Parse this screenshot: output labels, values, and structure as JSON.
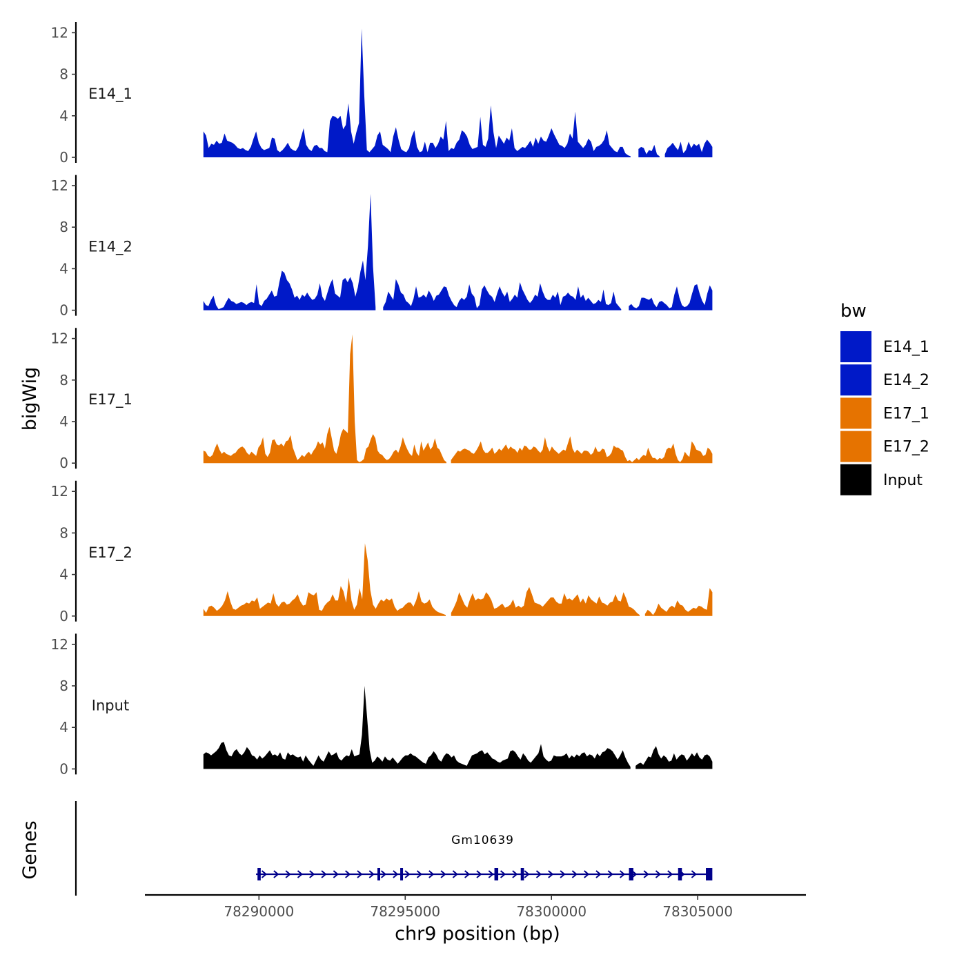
{
  "chart_data": {
    "type": "area",
    "title": "",
    "ylabel": "bigWig",
    "xlabel": "chr9 position (bp)",
    "genes_label": "Genes",
    "ylim": [
      0,
      12.5
    ],
    "yticks": [
      0,
      4,
      8,
      12
    ],
    "yticks_text": [
      "0",
      "4",
      "8",
      "12"
    ],
    "xlim": [
      78286100,
      78308700
    ],
    "xticks": [
      78290000,
      78295000,
      78300000,
      78305000
    ],
    "xticks_text": [
      "78290000",
      "78295000",
      "78300000",
      "78305000"
    ],
    "x_start": 78288100,
    "x_end": 78305500,
    "legend": {
      "title": "bw",
      "position": "right",
      "entries": [
        {
          "label": "E14_1",
          "color": "#0019c8"
        },
        {
          "label": "E14_2",
          "color": "#0019c8"
        },
        {
          "label": "E17_1",
          "color": "#e67300"
        },
        {
          "label": "E17_2",
          "color": "#e67300"
        },
        {
          "label": "Input",
          "color": "#000000"
        }
      ]
    },
    "series": [
      {
        "name": "E14_1",
        "color": "#0019c8",
        "values": [
          2.5,
          2.1,
          0.9,
          1.3,
          1.2,
          1.6,
          1.3,
          1.4,
          2.3,
          1.6,
          1.5,
          1.4,
          1.2,
          0.9,
          0.8,
          0.9,
          0.7,
          0.6,
          1.0,
          1.8,
          2.5,
          1.4,
          0.9,
          0.7,
          0.8,
          0.9,
          1.9,
          1.8,
          0.7,
          0.5,
          0.7,
          1.0,
          1.4,
          0.9,
          0.7,
          0.6,
          1.0,
          1.9,
          2.8,
          1.2,
          0.8,
          0.6,
          1.1,
          1.2,
          0.9,
          0.9,
          0.6,
          0.5,
          3.5,
          4.0,
          3.9,
          3.7,
          4.0,
          2.7,
          3.1,
          5.2,
          2.5,
          1.3,
          2.4,
          3.3,
          12.4,
          6.0,
          0.7,
          0.5,
          0.8,
          1.1,
          2.1,
          2.5,
          1.2,
          1.0,
          0.8,
          0.5,
          2.0,
          2.9,
          1.7,
          0.8,
          0.6,
          0.5,
          0.9,
          2.0,
          2.6,
          1.0,
          0.5,
          0.6,
          1.5,
          0.5,
          1.4,
          1.4,
          0.9,
          1.3,
          2.0,
          1.7,
          3.5,
          0.6,
          0.9,
          0.8,
          1.4,
          1.7,
          2.6,
          2.4,
          2.0,
          1.2,
          0.8,
          0.9,
          1.0,
          3.9,
          1.2,
          1.0,
          1.8,
          5.0,
          2.4,
          0.9,
          2.1,
          1.7,
          1.3,
          1.9,
          1.6,
          2.8,
          0.9,
          0.6,
          0.8,
          1.0,
          0.9,
          1.2,
          1.6,
          1.0,
          1.9,
          1.3,
          2.0,
          1.6,
          1.5,
          2.1,
          2.8,
          2.2,
          1.7,
          1.2,
          1.1,
          0.9,
          1.3,
          2.3,
          1.8,
          4.4,
          1.5,
          1.2,
          0.9,
          1.2,
          1.8,
          1.5,
          0.6,
          1.0,
          1.1,
          1.3,
          1.7,
          2.6,
          1.2,
          0.9,
          0.6,
          0.5,
          1.0,
          1.0,
          0.4,
          0.2,
          0.1,
          null,
          null,
          0.8,
          1.0,
          0.9,
          0.3,
          0.7,
          0.6,
          1.2,
          0.3,
          0.1,
          null,
          0.3,
          0.9,
          1.1,
          1.4,
          1.0,
          0.7,
          1.5,
          0.4,
          0.7,
          1.5,
          0.9,
          1.3,
          1.1,
          1.3,
          0.5,
          1.3,
          1.7,
          1.4,
          1.0
        ]
      },
      {
        "name": "E14_2",
        "color": "#0019c8",
        "values": [
          0.9,
          0.5,
          0.4,
          1.0,
          1.4,
          0.5,
          0.1,
          0.2,
          0.3,
          0.8,
          1.2,
          0.9,
          0.8,
          0.6,
          0.7,
          0.8,
          0.7,
          0.5,
          0.7,
          0.8,
          0.7,
          2.5,
          0.6,
          0.4,
          0.9,
          1.1,
          1.5,
          1.9,
          1.3,
          1.4,
          2.7,
          3.8,
          3.6,
          2.9,
          2.6,
          2.0,
          1.2,
          1.4,
          1.0,
          1.5,
          1.3,
          1.7,
          1.3,
          1.0,
          1.1,
          1.5,
          2.6,
          1.3,
          0.9,
          1.7,
          2.5,
          3.0,
          1.6,
          1.4,
          1.2,
          2.9,
          3.1,
          2.7,
          3.2,
          2.6,
          1.3,
          2.2,
          3.7,
          4.8,
          2.9,
          6.2,
          11.2,
          4.2,
          0.3,
          null,
          null,
          0.3,
          0.8,
          1.8,
          1.4,
          1.0,
          3.0,
          2.5,
          1.7,
          1.5,
          0.9,
          0.7,
          0.4,
          1.1,
          2.3,
          1.2,
          1.3,
          1.5,
          1.2,
          1.9,
          1.5,
          0.9,
          1.4,
          1.5,
          1.9,
          2.3,
          2.2,
          1.4,
          0.9,
          0.5,
          0.3,
          0.9,
          1.2,
          1.0,
          1.3,
          2.5,
          1.6,
          1.3,
          0.2,
          0.5,
          2.0,
          2.4,
          1.9,
          1.5,
          1.3,
          0.8,
          1.6,
          2.3,
          1.7,
          1.3,
          1.8,
          0.8,
          1.1,
          1.5,
          1.2,
          2.7,
          2.0,
          1.5,
          1.0,
          0.7,
          1.0,
          1.5,
          1.3,
          2.6,
          1.8,
          1.2,
          1.0,
          1.0,
          1.5,
          1.2,
          1.8,
          0.5,
          1.3,
          1.4,
          1.7,
          1.4,
          1.3,
          1.0,
          2.3,
          1.2,
          1.5,
          0.9,
          1.2,
          0.9,
          0.6,
          0.7,
          1.0,
          0.8,
          2.0,
          0.6,
          0.5,
          0.7,
          1.8,
          0.7,
          0.4,
          0.1,
          null,
          null,
          0.4,
          0.6,
          0.3,
          0.2,
          0.4,
          1.2,
          1.2,
          1.1,
          1.0,
          1.2,
          0.6,
          0.3,
          0.8,
          0.9,
          0.7,
          0.5,
          0.2,
          0.3,
          1.5,
          2.3,
          1.2,
          0.5,
          0.3,
          0.4,
          0.7,
          1.6,
          2.4,
          2.5,
          1.6,
          0.9,
          0.5,
          1.6,
          2.4,
          1.9
        ]
      },
      {
        "name": "E17_1",
        "color": "#e67300",
        "values": [
          1.2,
          1.1,
          0.7,
          0.6,
          0.8,
          1.4,
          1.9,
          1.3,
          0.9,
          1.1,
          0.9,
          0.8,
          0.7,
          0.9,
          1.0,
          1.3,
          1.5,
          1.6,
          1.4,
          1.0,
          0.8,
          1.1,
          0.9,
          0.7,
          1.5,
          1.8,
          2.5,
          0.9,
          0.6,
          1.0,
          2.2,
          2.3,
          1.8,
          1.7,
          1.9,
          1.6,
          2.1,
          2.2,
          2.7,
          1.5,
          0.9,
          0.3,
          0.5,
          0.8,
          0.6,
          0.9,
          1.1,
          0.8,
          1.2,
          1.5,
          2.1,
          1.8,
          2.0,
          1.4,
          2.8,
          3.5,
          2.4,
          1.2,
          0.9,
          1.7,
          2.8,
          3.3,
          3.1,
          2.9,
          10.5,
          12.4,
          4.0,
          0.3,
          0.1,
          0.2,
          0.4,
          1.4,
          1.6,
          2.3,
          2.8,
          2.4,
          1.2,
          0.9,
          0.8,
          0.5,
          0.3,
          0.4,
          0.7,
          1.1,
          1.3,
          1.0,
          1.6,
          2.5,
          1.8,
          1.3,
          0.9,
          0.7,
          1.8,
          1.0,
          0.7,
          2.1,
          1.2,
          1.6,
          2.0,
          1.3,
          1.6,
          2.4,
          1.5,
          1.3,
          0.8,
          0.3,
          0.1,
          null,
          0.3,
          0.6,
          0.9,
          1.2,
          1.1,
          1.3,
          1.4,
          1.3,
          1.2,
          1.0,
          0.9,
          1.2,
          1.6,
          2.1,
          1.3,
          1.0,
          1.0,
          1.2,
          1.5,
          0.9,
          1.1,
          1.4,
          1.2,
          1.5,
          1.8,
          1.3,
          1.6,
          1.4,
          1.3,
          1.0,
          1.5,
          1.2,
          1.7,
          1.6,
          1.3,
          1.3,
          1.6,
          1.5,
          1.2,
          1.0,
          1.3,
          2.5,
          1.6,
          1.1,
          1.6,
          1.3,
          1.1,
          0.9,
          1.1,
          1.3,
          1.2,
          1.9,
          2.6,
          1.4,
          1.0,
          1.3,
          1.1,
          0.9,
          1.2,
          1.2,
          1.1,
          0.8,
          1.0,
          1.6,
          1.1,
          1.1,
          1.4,
          1.3,
          0.6,
          0.7,
          1.0,
          1.7,
          1.5,
          1.5,
          1.3,
          1.2,
          0.6,
          0.2,
          0.3,
          0.1,
          0.3,
          0.5,
          0.3,
          0.6,
          0.8,
          0.7,
          1.5,
          0.9,
          0.5,
          0.5,
          0.3,
          0.5,
          0.4,
          0.6,
          1.3,
          1.5,
          1.4,
          1.9,
          0.9,
          0.3,
          0.1,
          0.4,
          1.1,
          0.8,
          0.6,
          2.1,
          1.8,
          1.3,
          1.2,
          1.1,
          0.7,
          0.8,
          1.5,
          1.3,
          0.9
        ]
      },
      {
        "name": "E17_2",
        "color": "#e67300",
        "values": [
          0.7,
          0.3,
          0.9,
          1.0,
          0.8,
          0.5,
          0.7,
          1.0,
          1.5,
          2.4,
          1.4,
          0.7,
          0.6,
          0.8,
          1.0,
          1.1,
          1.3,
          1.2,
          1.5,
          1.4,
          1.8,
          0.7,
          0.9,
          1.1,
          1.3,
          1.2,
          2.2,
          1.2,
          0.9,
          1.3,
          1.4,
          1.1,
          1.2,
          1.5,
          1.7,
          2.1,
          1.4,
          1.0,
          1.1,
          2.3,
          2.1,
          2.0,
          2.3,
          0.6,
          0.5,
          1.0,
          1.3,
          1.5,
          2.1,
          1.5,
          1.5,
          2.9,
          2.4,
          1.3,
          3.7,
          1.5,
          0.6,
          1.1,
          2.7,
          1.6,
          7.0,
          5.4,
          2.5,
          1.1,
          0.7,
          1.2,
          1.6,
          1.4,
          1.7,
          1.5,
          1.7,
          0.9,
          0.5,
          0.7,
          0.8,
          1.1,
          1.3,
          1.3,
          0.9,
          1.5,
          2.4,
          1.4,
          1.2,
          1.3,
          1.6,
          0.9,
          0.6,
          0.4,
          0.3,
          0.2,
          0.1,
          null,
          0.3,
          0.8,
          1.4,
          2.3,
          1.7,
          1.1,
          0.8,
          1.6,
          2.2,
          1.5,
          1.7,
          1.6,
          1.7,
          2.3,
          2.0,
          1.5,
          0.7,
          0.8,
          1.0,
          1.2,
          0.8,
          0.9,
          1.1,
          1.6,
          0.8,
          1.0,
          0.8,
          1.0,
          2.3,
          2.8,
          2.1,
          1.3,
          1.2,
          1.1,
          0.9,
          1.2,
          1.5,
          1.8,
          1.8,
          1.4,
          1.2,
          1.2,
          2.2,
          1.6,
          1.7,
          1.5,
          1.8,
          2.1,
          1.3,
          1.7,
          1.2,
          2.0,
          1.6,
          1.4,
          1.2,
          1.9,
          1.3,
          1.2,
          1.0,
          1.3,
          1.4,
          2.1,
          1.5,
          1.4,
          2.3,
          1.7,
          0.9,
          0.8,
          0.6,
          0.3,
          0.1,
          null,
          0.2,
          0.6,
          0.4,
          0.1,
          0.5,
          1.2,
          0.8,
          0.6,
          0.4,
          0.8,
          1.0,
          0.8,
          1.5,
          1.1,
          1.0,
          0.6,
          0.4,
          0.6,
          0.8,
          0.7,
          1.0,
          0.9,
          0.7,
          0.6,
          2.7,
          2.3
        ]
      },
      {
        "name": "Input",
        "color": "#000000",
        "values": [
          1.4,
          1.6,
          1.5,
          1.3,
          1.5,
          1.7,
          2.0,
          2.5,
          2.6,
          1.8,
          1.3,
          1.2,
          1.7,
          1.9,
          1.5,
          1.3,
          1.6,
          2.1,
          1.8,
          1.3,
          1.2,
          0.9,
          1.3,
          1.0,
          1.2,
          1.5,
          1.8,
          1.3,
          1.4,
          1.2,
          1.6,
          1.0,
          0.9,
          1.6,
          1.3,
          1.4,
          1.2,
          1.1,
          1.2,
          0.7,
          1.3,
          0.9,
          0.6,
          0.3,
          0.8,
          1.3,
          0.9,
          0.7,
          1.2,
          1.7,
          1.3,
          1.4,
          1.6,
          1.0,
          0.8,
          1.1,
          1.3,
          1.2,
          1.9,
          1.2,
          1.3,
          1.4,
          3.3,
          8.0,
          5.0,
          1.8,
          0.6,
          0.8,
          1.2,
          1.0,
          0.7,
          1.2,
          0.9,
          0.8,
          1.1,
          0.8,
          0.5,
          0.8,
          1.1,
          1.3,
          1.3,
          1.5,
          1.3,
          1.2,
          1.0,
          0.8,
          0.6,
          0.5,
          1.1,
          1.3,
          1.7,
          1.4,
          0.9,
          0.7,
          1.2,
          1.5,
          1.4,
          1.1,
          1.3,
          0.8,
          0.6,
          0.5,
          0.4,
          0.3,
          0.8,
          1.3,
          1.4,
          1.5,
          1.7,
          1.8,
          1.4,
          1.6,
          1.3,
          1.0,
          0.9,
          0.7,
          0.6,
          0.8,
          0.9,
          1.0,
          1.7,
          1.8,
          1.6,
          1.2,
          0.9,
          1.5,
          1.2,
          0.8,
          0.6,
          0.9,
          1.2,
          1.5,
          2.4,
          1.2,
          0.9,
          0.7,
          0.8,
          1.3,
          1.2,
          1.2,
          1.2,
          1.3,
          1.5,
          1.0,
          1.3,
          1.1,
          1.4,
          1.2,
          1.5,
          1.6,
          1.2,
          1.4,
          1.3,
          1.0,
          1.5,
          1.2,
          1.6,
          1.7,
          2.0,
          1.9,
          1.7,
          1.3,
          0.9,
          1.3,
          1.8,
          1.1,
          0.6,
          0.2,
          null,
          0.3,
          0.5,
          0.6,
          0.4,
          0.8,
          1.2,
          1.1,
          1.8,
          2.2,
          1.4,
          1.0,
          1.3,
          1.1,
          0.7,
          0.8,
          1.5,
          0.9,
          1.2,
          1.4,
          1.3,
          0.8,
          1.1,
          1.5,
          1.2,
          1.6,
          1.1,
          0.9,
          1.3,
          1.4,
          1.2,
          0.7
        ]
      }
    ],
    "genes": [
      {
        "name": "Gm10639",
        "start": 78289900,
        "end": 78305400,
        "strand": "+",
        "color": "#00008b",
        "exons": [
          [
            78289950,
            78290060
          ],
          [
            78294050,
            78294130
          ],
          [
            78294830,
            78294920
          ],
          [
            78298050,
            78298180
          ],
          [
            78298950,
            78299060
          ],
          [
            78302650,
            78302800
          ],
          [
            78304330,
            78304460
          ],
          [
            78305280,
            78305500
          ]
        ]
      }
    ]
  }
}
